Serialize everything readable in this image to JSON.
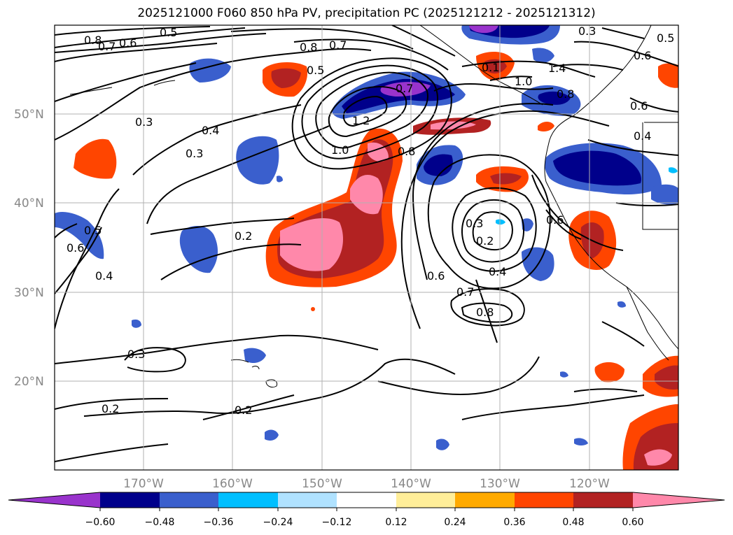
{
  "title": "2025121000 F060 850 hPa PV, precipitation PC (2025121212 - 2025121312)",
  "map": {
    "projection": "lat-lon",
    "lon_range": [
      -180,
      -110
    ],
    "lat_range": [
      10,
      60
    ],
    "gridlines": true,
    "lat_labels": [
      "50°N",
      "40°N",
      "30°N",
      "20°N"
    ],
    "lon_labels": [
      "170°W",
      "160°W",
      "150°W",
      "140°W",
      "130°W",
      "120°W"
    ]
  },
  "contour_labels": [
    "0.8",
    "0.7",
    "0.6",
    "0.5",
    "0.5",
    "0.8",
    "0.7",
    "0.5",
    "1.4",
    "0.6",
    "0.3",
    "0.4",
    "0.3",
    "1.2",
    "1.0",
    "0.8",
    "0.6",
    "0.4",
    "0.2",
    "0.3",
    "0.2",
    "0.6",
    "0.7",
    "0.8",
    "0.4",
    "0.5",
    "0.6",
    "0.4",
    "0.3",
    "0.2",
    "0.2",
    "0.1",
    "1.0",
    "0.8",
    "0.7",
    "0.6",
    "0.3"
  ],
  "colorbar": {
    "colors": [
      "#9933cc",
      "#00008b",
      "#3a5fcd",
      "#00bfff",
      "#b0e2ff",
      "#ffffff",
      "#ffee99",
      "#ffaa00",
      "#ff4500",
      "#b22222",
      "#ff88aa"
    ],
    "ticks": [
      "−0.60",
      "−0.48",
      "−0.36",
      "−0.24",
      "−0.12",
      "0.12",
      "0.24",
      "0.36",
      "0.48",
      "0.60"
    ]
  },
  "colors": {
    "pos_strong": "#ff88aa",
    "pos_mid": "#b22222",
    "pos_low": "#ff4500",
    "neg_strong": "#9933cc",
    "neg_mid": "#00008b",
    "neg_low": "#3a5fcd"
  }
}
